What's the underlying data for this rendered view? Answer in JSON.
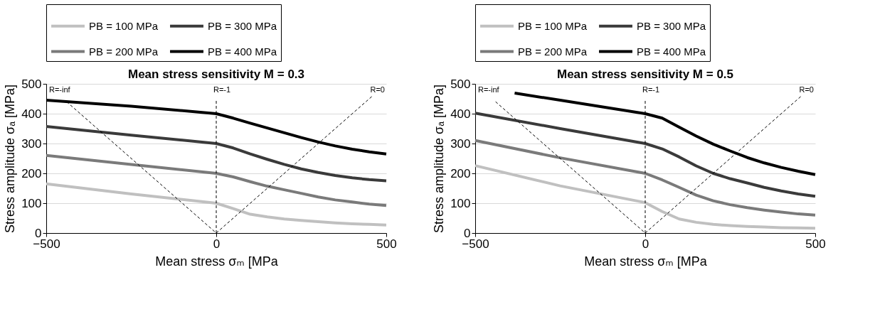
{
  "chart_data": [
    {
      "type": "line",
      "title": "Mean stress sensitivity M = 0.3",
      "xlabel": "Mean stress σₘ [MPa",
      "ylabel": "Stress amplitude σₐ [MPa]",
      "xlim": [
        -500,
        500
      ],
      "xticks": [
        -500,
        0,
        500
      ],
      "ylim": [
        0,
        500
      ],
      "yticks": [
        0,
        100,
        200,
        300,
        400,
        500
      ],
      "grid": "y",
      "legend": "top",
      "series": [
        {
          "name": "PB = 100 MPa",
          "color": "#c0c0c0",
          "line_style": "solid",
          "x": [
            -500,
            -250,
            0,
            50,
            100,
            150,
            200,
            250,
            300,
            350,
            400,
            450,
            500
          ],
          "values": [
            165,
            131,
            100,
            82,
            63,
            54,
            47,
            42,
            38,
            34,
            31,
            29,
            27
          ]
        },
        {
          "name": "PB = 200 MPa",
          "color": "#7a7a7a",
          "line_style": "solid",
          "x": [
            -500,
            -250,
            0,
            50,
            100,
            150,
            200,
            250,
            300,
            350,
            400,
            450,
            500
          ],
          "values": [
            260,
            230,
            200,
            188,
            172,
            157,
            145,
            133,
            121,
            111,
            104,
            97,
            92
          ]
        },
        {
          "name": "PB = 300 MPa",
          "color": "#3a3a3a",
          "line_style": "solid",
          "x": [
            -500,
            -250,
            0,
            50,
            100,
            150,
            200,
            250,
            300,
            350,
            400,
            450,
            500
          ],
          "values": [
            357,
            328,
            300,
            285,
            265,
            247,
            230,
            215,
            203,
            193,
            185,
            179,
            175
          ]
        },
        {
          "name": "PB = 400 MPa",
          "color": "#000000",
          "line_style": "solid",
          "x": [
            -500,
            -250,
            0,
            50,
            100,
            150,
            200,
            250,
            300,
            350,
            400,
            450,
            500
          ],
          "values": [
            445,
            425,
            400,
            385,
            368,
            352,
            336,
            320,
            305,
            292,
            281,
            272,
            265
          ]
        },
        {
          "name": "R=-inf",
          "color": "#000000",
          "line_style": "dashed",
          "x": [
            -440,
            0
          ],
          "values": [
            440,
            0
          ]
        },
        {
          "name": "R=-1",
          "color": "#000000",
          "line_style": "dashed",
          "x": [
            0,
            0
          ],
          "values": [
            0,
            450
          ]
        },
        {
          "name": "R=0",
          "color": "#000000",
          "line_style": "dashed",
          "x": [
            0,
            460
          ],
          "values": [
            0,
            460
          ]
        }
      ]
    },
    {
      "type": "line",
      "title": "Mean stress sensitivity M = 0.5",
      "xlabel": "Mean stress σₘ [MPa",
      "ylabel": "Stress amplitude σₐ [MPa]",
      "xlim": [
        -500,
        500
      ],
      "xticks": [
        -500,
        0,
        500
      ],
      "ylim": [
        0,
        500
      ],
      "yticks": [
        0,
        100,
        200,
        300,
        400,
        500
      ],
      "grid": "y",
      "legend": "top",
      "series": [
        {
          "name": "PB = 100 MPa",
          "color": "#c0c0c0",
          "line_style": "solid",
          "x": [
            -500,
            -250,
            0,
            50,
            100,
            150,
            200,
            250,
            300,
            350,
            400,
            450,
            500
          ],
          "values": [
            226,
            158,
            102,
            72,
            47,
            36,
            29,
            25,
            22,
            20,
            18,
            17,
            16
          ]
        },
        {
          "name": "PB = 200 MPa",
          "color": "#7a7a7a",
          "line_style": "solid",
          "x": [
            -500,
            -250,
            0,
            50,
            100,
            150,
            200,
            250,
            300,
            350,
            400,
            450,
            500
          ],
          "values": [
            310,
            252,
            200,
            178,
            153,
            127,
            108,
            95,
            85,
            77,
            70,
            64,
            60
          ]
        },
        {
          "name": "PB = 300 MPa",
          "color": "#3a3a3a",
          "line_style": "solid",
          "x": [
            -500,
            -250,
            0,
            50,
            100,
            150,
            200,
            250,
            300,
            350,
            400,
            450,
            500
          ],
          "values": [
            402,
            350,
            300,
            282,
            255,
            225,
            200,
            182,
            168,
            153,
            141,
            131,
            123
          ]
        },
        {
          "name": "PB = 400 MPa",
          "color": "#000000",
          "line_style": "solid",
          "x": [
            -384,
            -250,
            0,
            50,
            100,
            150,
            200,
            250,
            300,
            350,
            400,
            450,
            500
          ],
          "values": [
            469,
            445,
            400,
            385,
            355,
            325,
            298,
            275,
            253,
            235,
            220,
            207,
            196
          ]
        },
        {
          "name": "R=-inf",
          "color": "#000000",
          "line_style": "dashed",
          "x": [
            -440,
            0
          ],
          "values": [
            440,
            0
          ]
        },
        {
          "name": "R=-1",
          "color": "#000000",
          "line_style": "dashed",
          "x": [
            0,
            0
          ],
          "values": [
            0,
            450
          ]
        },
        {
          "name": "R=0",
          "color": "#000000",
          "line_style": "dashed",
          "x": [
            0,
            460
          ],
          "values": [
            0,
            460
          ]
        }
      ]
    }
  ]
}
